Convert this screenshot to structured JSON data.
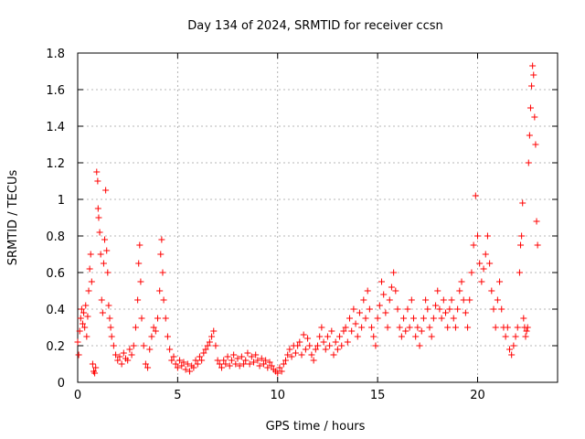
{
  "chart_data": {
    "type": "scatter",
    "title": "Day 134 of 2024, SRMTID for receiver ccsn",
    "xlabel": "GPS time / hours",
    "ylabel": "SRMTID / TECUs",
    "xlim": [
      0,
      24
    ],
    "ylim": [
      0,
      1.8
    ],
    "xticks": [
      0,
      5,
      10,
      15,
      20
    ],
    "xtick_labels": [
      "0",
      "5",
      "10",
      "15",
      "20"
    ],
    "yticks": [
      0,
      0.2,
      0.4,
      0.6,
      0.8,
      1.0,
      1.2,
      1.4,
      1.6,
      1.8
    ],
    "ytick_labels": [
      "0",
      "0.2",
      "0.4",
      "0.6",
      "0.8",
      "1",
      "1.2",
      "1.4",
      "1.6",
      "1.8"
    ],
    "grid": true,
    "marker": "plus",
    "color": "#ff0000",
    "series": [
      {
        "name": "SRMTID",
        "points": [
          [
            0.0,
            0.22
          ],
          [
            0.05,
            0.15
          ],
          [
            0.1,
            0.28
          ],
          [
            0.15,
            0.35
          ],
          [
            0.2,
            0.4
          ],
          [
            0.25,
            0.32
          ],
          [
            0.3,
            0.38
          ],
          [
            0.35,
            0.3
          ],
          [
            0.4,
            0.42
          ],
          [
            0.45,
            0.25
          ],
          [
            0.5,
            0.36
          ],
          [
            0.55,
            0.5
          ],
          [
            0.6,
            0.62
          ],
          [
            0.65,
            0.7
          ],
          [
            0.7,
            0.55
          ],
          [
            0.75,
            0.1
          ],
          [
            0.8,
            0.06
          ],
          [
            0.85,
            0.05
          ],
          [
            0.9,
            0.08
          ],
          [
            0.95,
            1.15
          ],
          [
            1.0,
            1.1
          ],
          [
            1.02,
            0.95
          ],
          [
            1.05,
            0.9
          ],
          [
            1.1,
            0.82
          ],
          [
            1.15,
            0.7
          ],
          [
            1.2,
            0.45
          ],
          [
            1.25,
            0.38
          ],
          [
            1.3,
            0.65
          ],
          [
            1.35,
            0.78
          ],
          [
            1.4,
            1.05
          ],
          [
            1.45,
            0.72
          ],
          [
            1.5,
            0.6
          ],
          [
            1.55,
            0.42
          ],
          [
            1.6,
            0.35
          ],
          [
            1.65,
            0.3
          ],
          [
            1.7,
            0.25
          ],
          [
            1.8,
            0.2
          ],
          [
            1.9,
            0.15
          ],
          [
            2.0,
            0.12
          ],
          [
            2.1,
            0.14
          ],
          [
            2.2,
            0.1
          ],
          [
            2.3,
            0.16
          ],
          [
            2.4,
            0.13
          ],
          [
            2.5,
            0.12
          ],
          [
            2.6,
            0.18
          ],
          [
            2.7,
            0.15
          ],
          [
            2.8,
            0.2
          ],
          [
            2.9,
            0.3
          ],
          [
            3.0,
            0.45
          ],
          [
            3.05,
            0.65
          ],
          [
            3.1,
            0.75
          ],
          [
            3.15,
            0.55
          ],
          [
            3.2,
            0.35
          ],
          [
            3.3,
            0.2
          ],
          [
            3.4,
            0.1
          ],
          [
            3.5,
            0.08
          ],
          [
            3.6,
            0.18
          ],
          [
            3.7,
            0.25
          ],
          [
            3.8,
            0.3
          ],
          [
            3.9,
            0.28
          ],
          [
            4.0,
            0.35
          ],
          [
            4.1,
            0.5
          ],
          [
            4.15,
            0.7
          ],
          [
            4.2,
            0.78
          ],
          [
            4.25,
            0.6
          ],
          [
            4.3,
            0.45
          ],
          [
            4.4,
            0.35
          ],
          [
            4.5,
            0.25
          ],
          [
            4.6,
            0.18
          ],
          [
            4.7,
            0.12
          ],
          [
            4.8,
            0.14
          ],
          [
            4.9,
            0.1
          ],
          [
            5.0,
            0.08
          ],
          [
            5.1,
            0.12
          ],
          [
            5.2,
            0.09
          ],
          [
            5.3,
            0.11
          ],
          [
            5.4,
            0.07
          ],
          [
            5.5,
            0.1
          ],
          [
            5.6,
            0.06
          ],
          [
            5.7,
            0.09
          ],
          [
            5.8,
            0.08
          ],
          [
            5.9,
            0.12
          ],
          [
            6.0,
            0.1
          ],
          [
            6.1,
            0.14
          ],
          [
            6.2,
            0.12
          ],
          [
            6.3,
            0.16
          ],
          [
            6.4,
            0.18
          ],
          [
            6.5,
            0.2
          ],
          [
            6.6,
            0.22
          ],
          [
            6.7,
            0.25
          ],
          [
            6.8,
            0.28
          ],
          [
            6.9,
            0.2
          ],
          [
            7.0,
            0.12
          ],
          [
            7.1,
            0.1
          ],
          [
            7.2,
            0.08
          ],
          [
            7.3,
            0.12
          ],
          [
            7.4,
            0.1
          ],
          [
            7.5,
            0.14
          ],
          [
            7.6,
            0.09
          ],
          [
            7.7,
            0.12
          ],
          [
            7.8,
            0.15
          ],
          [
            7.9,
            0.1
          ],
          [
            8.0,
            0.13
          ],
          [
            8.1,
            0.09
          ],
          [
            8.2,
            0.14
          ],
          [
            8.3,
            0.1
          ],
          [
            8.4,
            0.12
          ],
          [
            8.5,
            0.16
          ],
          [
            8.6,
            0.1
          ],
          [
            8.7,
            0.14
          ],
          [
            8.8,
            0.11
          ],
          [
            8.9,
            0.15
          ],
          [
            9.0,
            0.12
          ],
          [
            9.1,
            0.09
          ],
          [
            9.2,
            0.13
          ],
          [
            9.3,
            0.1
          ],
          [
            9.4,
            0.12
          ],
          [
            9.5,
            0.08
          ],
          [
            9.6,
            0.11
          ],
          [
            9.7,
            0.09
          ],
          [
            9.8,
            0.07
          ],
          [
            9.9,
            0.06
          ],
          [
            10.0,
            0.05
          ],
          [
            10.1,
            0.08
          ],
          [
            10.2,
            0.06
          ],
          [
            10.3,
            0.1
          ],
          [
            10.4,
            0.12
          ],
          [
            10.5,
            0.15
          ],
          [
            10.6,
            0.18
          ],
          [
            10.7,
            0.14
          ],
          [
            10.8,
            0.2
          ],
          [
            10.9,
            0.16
          ],
          [
            11.0,
            0.2
          ],
          [
            11.1,
            0.22
          ],
          [
            11.2,
            0.15
          ],
          [
            11.3,
            0.26
          ],
          [
            11.4,
            0.18
          ],
          [
            11.5,
            0.24
          ],
          [
            11.6,
            0.2
          ],
          [
            11.7,
            0.15
          ],
          [
            11.8,
            0.12
          ],
          [
            11.9,
            0.18
          ],
          [
            12.0,
            0.2
          ],
          [
            12.1,
            0.25
          ],
          [
            12.2,
            0.3
          ],
          [
            12.3,
            0.22
          ],
          [
            12.4,
            0.18
          ],
          [
            12.5,
            0.25
          ],
          [
            12.6,
            0.2
          ],
          [
            12.7,
            0.28
          ],
          [
            12.8,
            0.15
          ],
          [
            12.9,
            0.22
          ],
          [
            13.0,
            0.18
          ],
          [
            13.1,
            0.25
          ],
          [
            13.2,
            0.2
          ],
          [
            13.3,
            0.28
          ],
          [
            13.4,
            0.3
          ],
          [
            13.5,
            0.22
          ],
          [
            13.6,
            0.35
          ],
          [
            13.7,
            0.28
          ],
          [
            13.8,
            0.4
          ],
          [
            13.9,
            0.32
          ],
          [
            14.0,
            0.25
          ],
          [
            14.1,
            0.38
          ],
          [
            14.2,
            0.3
          ],
          [
            14.3,
            0.45
          ],
          [
            14.4,
            0.35
          ],
          [
            14.5,
            0.5
          ],
          [
            14.6,
            0.4
          ],
          [
            14.7,
            0.3
          ],
          [
            14.8,
            0.25
          ],
          [
            14.9,
            0.2
          ],
          [
            15.0,
            0.35
          ],
          [
            15.1,
            0.42
          ],
          [
            15.2,
            0.55
          ],
          [
            15.3,
            0.48
          ],
          [
            15.4,
            0.38
          ],
          [
            15.5,
            0.3
          ],
          [
            15.6,
            0.45
          ],
          [
            15.7,
            0.52
          ],
          [
            15.8,
            0.6
          ],
          [
            15.9,
            0.5
          ],
          [
            16.0,
            0.4
          ],
          [
            16.1,
            0.3
          ],
          [
            16.2,
            0.25
          ],
          [
            16.3,
            0.35
          ],
          [
            16.4,
            0.28
          ],
          [
            16.5,
            0.4
          ],
          [
            16.6,
            0.3
          ],
          [
            16.7,
            0.45
          ],
          [
            16.8,
            0.35
          ],
          [
            16.9,
            0.25
          ],
          [
            17.0,
            0.3
          ],
          [
            17.1,
            0.2
          ],
          [
            17.2,
            0.28
          ],
          [
            17.3,
            0.35
          ],
          [
            17.4,
            0.45
          ],
          [
            17.5,
            0.4
          ],
          [
            17.6,
            0.3
          ],
          [
            17.7,
            0.25
          ],
          [
            17.8,
            0.35
          ],
          [
            17.9,
            0.42
          ],
          [
            18.0,
            0.5
          ],
          [
            18.1,
            0.4
          ],
          [
            18.2,
            0.35
          ],
          [
            18.3,
            0.45
          ],
          [
            18.4,
            0.38
          ],
          [
            18.5,
            0.3
          ],
          [
            18.6,
            0.4
          ],
          [
            18.7,
            0.45
          ],
          [
            18.8,
            0.35
          ],
          [
            18.9,
            0.3
          ],
          [
            19.0,
            0.4
          ],
          [
            19.1,
            0.5
          ],
          [
            19.2,
            0.55
          ],
          [
            19.3,
            0.45
          ],
          [
            19.4,
            0.38
          ],
          [
            19.5,
            0.3
          ],
          [
            19.6,
            0.45
          ],
          [
            19.7,
            0.6
          ],
          [
            19.8,
            0.75
          ],
          [
            19.9,
            1.02
          ],
          [
            20.0,
            0.8
          ],
          [
            20.1,
            0.65
          ],
          [
            20.2,
            0.55
          ],
          [
            20.3,
            0.62
          ],
          [
            20.4,
            0.7
          ],
          [
            20.5,
            0.8
          ],
          [
            20.6,
            0.65
          ],
          [
            20.7,
            0.5
          ],
          [
            20.8,
            0.4
          ],
          [
            20.9,
            0.3
          ],
          [
            21.0,
            0.45
          ],
          [
            21.1,
            0.55
          ],
          [
            21.2,
            0.4
          ],
          [
            21.3,
            0.3
          ],
          [
            21.4,
            0.25
          ],
          [
            21.5,
            0.3
          ],
          [
            21.6,
            0.18
          ],
          [
            21.7,
            0.15
          ],
          [
            21.8,
            0.2
          ],
          [
            21.9,
            0.25
          ],
          [
            22.0,
            0.3
          ],
          [
            22.1,
            0.6
          ],
          [
            22.15,
            0.75
          ],
          [
            22.2,
            0.8
          ],
          [
            22.25,
            0.98
          ],
          [
            22.3,
            0.35
          ],
          [
            22.35,
            0.3
          ],
          [
            22.4,
            0.25
          ],
          [
            22.45,
            0.28
          ],
          [
            22.5,
            0.3
          ],
          [
            22.55,
            1.2
          ],
          [
            22.6,
            1.35
          ],
          [
            22.65,
            1.5
          ],
          [
            22.7,
            1.62
          ],
          [
            22.75,
            1.73
          ],
          [
            22.8,
            1.68
          ],
          [
            22.85,
            1.45
          ],
          [
            22.9,
            1.3
          ],
          [
            22.95,
            0.88
          ],
          [
            23.0,
            0.75
          ]
        ]
      }
    ]
  }
}
